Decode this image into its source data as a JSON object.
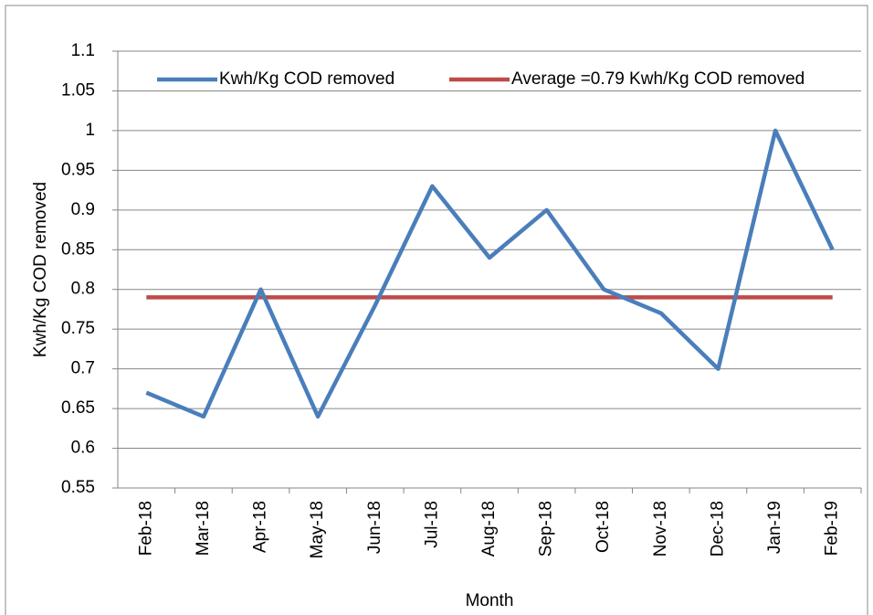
{
  "chart_data": {
    "type": "line",
    "x_label": "Month",
    "y_label": "Kwh/Kg COD removed",
    "categories": [
      "Feb-18",
      "Mar-18",
      "Apr-18",
      "May-18",
      "Jun-18",
      "Jul-18",
      "Aug-18",
      "Sep-18",
      "Oct-18",
      "Nov-18",
      "Dec-18",
      "Jan-19",
      "Feb-19"
    ],
    "series": [
      {
        "name": "Kwh/Kg COD removed",
        "color": "#4a7ebb",
        "values": [
          0.67,
          0.64,
          0.8,
          0.64,
          0.78,
          0.93,
          0.84,
          0.9,
          0.8,
          0.77,
          0.7,
          1.0,
          0.85
        ]
      },
      {
        "name": "Average =0.79 Kwh/Kg COD removed",
        "color": "#be4b48",
        "values": [
          0.79,
          0.79,
          0.79,
          0.79,
          0.79,
          0.79,
          0.79,
          0.79,
          0.79,
          0.79,
          0.79,
          0.79,
          0.79
        ]
      }
    ],
    "ylim": [
      0.55,
      1.1
    ],
    "yticks": [
      0.55,
      0.6,
      0.65,
      0.7,
      0.75,
      0.8,
      0.85,
      0.9,
      0.95,
      1,
      1.05,
      1.1
    ],
    "grid": true,
    "legend": "top"
  }
}
